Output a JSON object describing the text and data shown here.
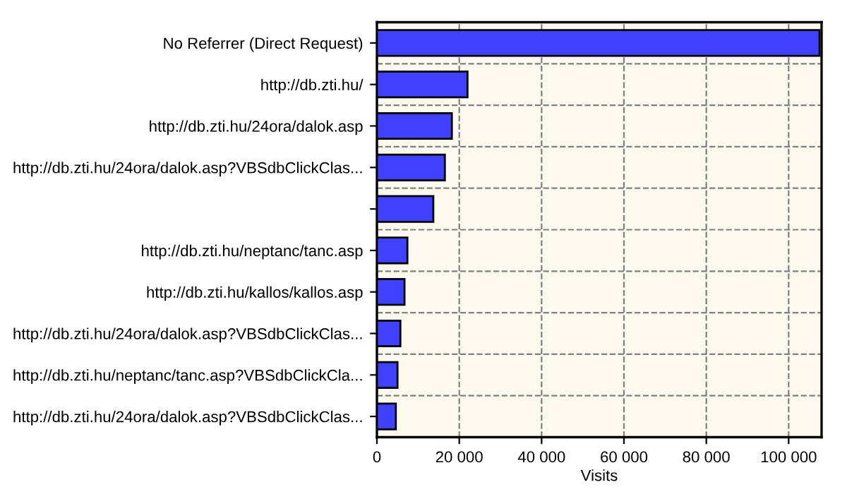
{
  "chart_data": {
    "type": "bar",
    "orientation": "horizontal",
    "xlabel": "Visits",
    "categories": [
      "No Referrer (Direct Request)",
      "http://db.zti.hu/",
      "http://db.zti.hu/24ora/dalok.asp",
      "http://db.zti.hu/24ora/dalok.asp?VBSdbClickClas...",
      null,
      "http://db.zti.hu/neptanc/tanc.asp",
      "http://db.zti.hu/kallos/kallos.asp",
      "http://db.zti.hu/24ora/dalok.asp?VBSdbClickClas...",
      "http://db.zti.hu/neptanc/tanc.asp?VBSdbClickCla...",
      "http://db.zti.hu/24ora/dalok.asp?VBSdbClickClas..."
    ],
    "values": [
      107500,
      22000,
      18200,
      16500,
      13700,
      7400,
      6700,
      5700,
      5000,
      4600
    ],
    "color": "#4040ff",
    "xlim": [
      0,
      108000
    ],
    "xticks": [
      0,
      {
        "value": 20000,
        "label": "20 000"
      },
      {
        "value": 40000,
        "label": "40 000"
      },
      {
        "value": 60000,
        "label": "60 000"
      },
      {
        "value": 80000,
        "label": "80 000"
      },
      {
        "value": 100000,
        "label": "100 000"
      }
    ],
    "grid": true,
    "legend": false
  }
}
